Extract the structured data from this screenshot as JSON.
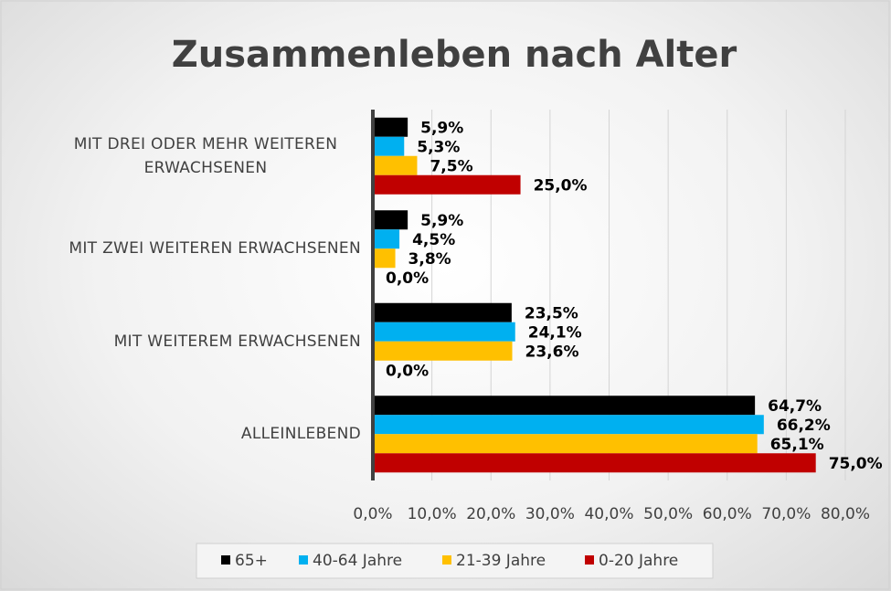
{
  "chart_data": {
    "type": "hbar",
    "title": "Zusammenleben nach Alter",
    "categories": [
      "MIT DREI ODER MEHR WEITEREN ERWACHSENEN",
      "MIT ZWEI WEITEREN ERWACHSENEN",
      "MIT WEITEREM ERWACHSENEN",
      "ALLEINLEBEND"
    ],
    "series": [
      {
        "name": "65+",
        "color": "#000000",
        "values": [
          5.9,
          5.9,
          23.5,
          64.7
        ],
        "value_labels": [
          "5,9%",
          "5,9%",
          "23,5%",
          "64,7%"
        ]
      },
      {
        "name": "40-64 Jahre",
        "color": "#00b0f0",
        "values": [
          5.3,
          4.5,
          24.1,
          66.2
        ],
        "value_labels": [
          "5,3%",
          "4,5%",
          "24,1%",
          "66,2%"
        ]
      },
      {
        "name": "21-39 Jahre",
        "color": "#ffc000",
        "values": [
          7.5,
          3.8,
          23.6,
          65.1
        ],
        "value_labels": [
          "7,5%",
          "3,8%",
          "23,6%",
          "65,1%"
        ]
      },
      {
        "name": "0-20 Jahre",
        "color": "#c00000",
        "values": [
          25.0,
          0.0,
          0.0,
          75.0
        ],
        "value_labels": [
          "25,0%",
          "0,0%",
          "0,0%",
          "75,0%"
        ]
      }
    ],
    "xlim": [
      0,
      80
    ],
    "xticks": [
      {
        "value": 0,
        "label": "0,0%"
      },
      {
        "value": 10,
        "label": "10,0%"
      },
      {
        "value": 20,
        "label": "20,0%"
      },
      {
        "value": 30,
        "label": "30,0%"
      },
      {
        "value": 40,
        "label": "40,0%"
      },
      {
        "value": 50,
        "label": "50,0%"
      },
      {
        "value": 60,
        "label": "60,0%"
      },
      {
        "value": 70,
        "label": "70,0%"
      },
      {
        "value": 80,
        "label": "80,0%"
      }
    ],
    "grid": true,
    "legend": "bottom"
  }
}
